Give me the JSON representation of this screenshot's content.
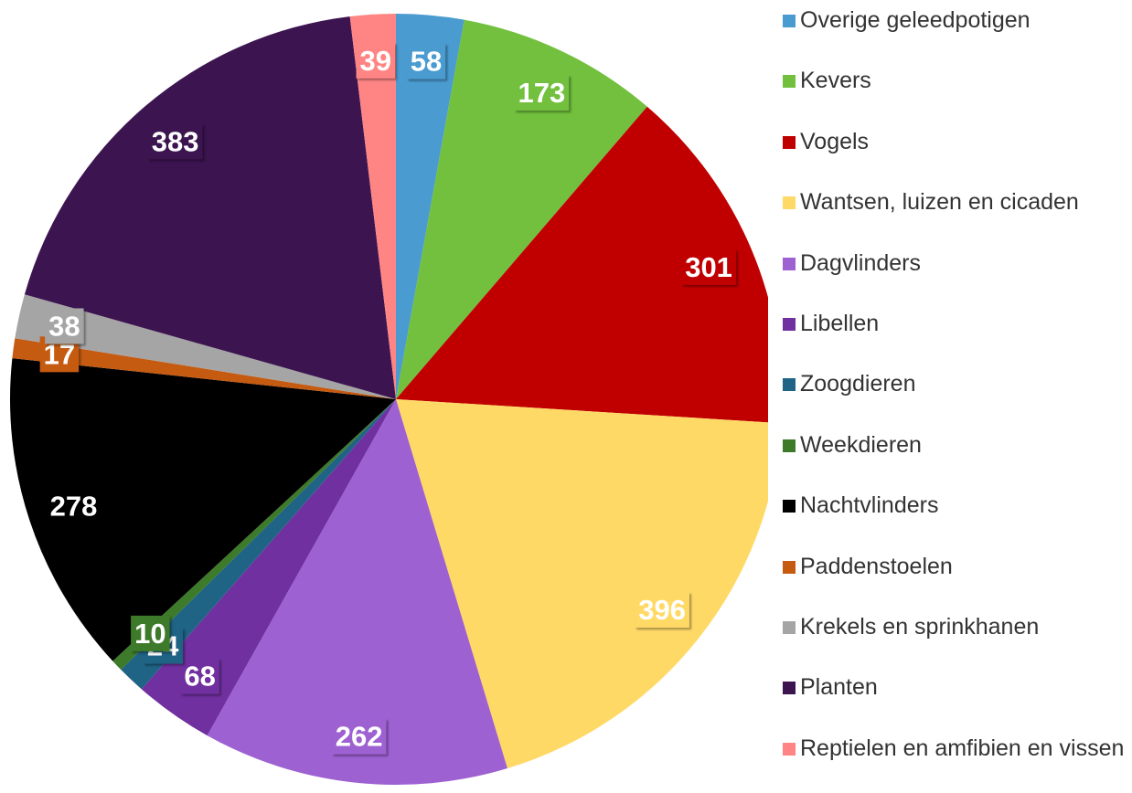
{
  "chart_data": {
    "type": "pie",
    "categories": [
      "Overige geleedpotigen",
      "Kevers",
      "Vogels",
      "Wantsen, luizen en cicaden",
      "Dagvlinders",
      "Libellen",
      "Zoogdieren",
      "Weekdieren",
      "Nachtvlinders",
      "Paddenstoelen",
      "Krekels en sprinkhanen",
      "Planten",
      "Reptielen en amfibien en vissen"
    ],
    "values": [
      58,
      173,
      301,
      396,
      262,
      68,
      24,
      10,
      278,
      17,
      38,
      383,
      39
    ],
    "colors": [
      "#4a9bd0",
      "#72c03e",
      "#c00000",
      "#ffd966",
      "#9e61d2",
      "#7030a0",
      "#1f6385",
      "#3d7a2a",
      "#000000",
      "#c55a11",
      "#a5a5a5",
      "#3c1450",
      "#ff8585"
    ],
    "legend": "right"
  }
}
